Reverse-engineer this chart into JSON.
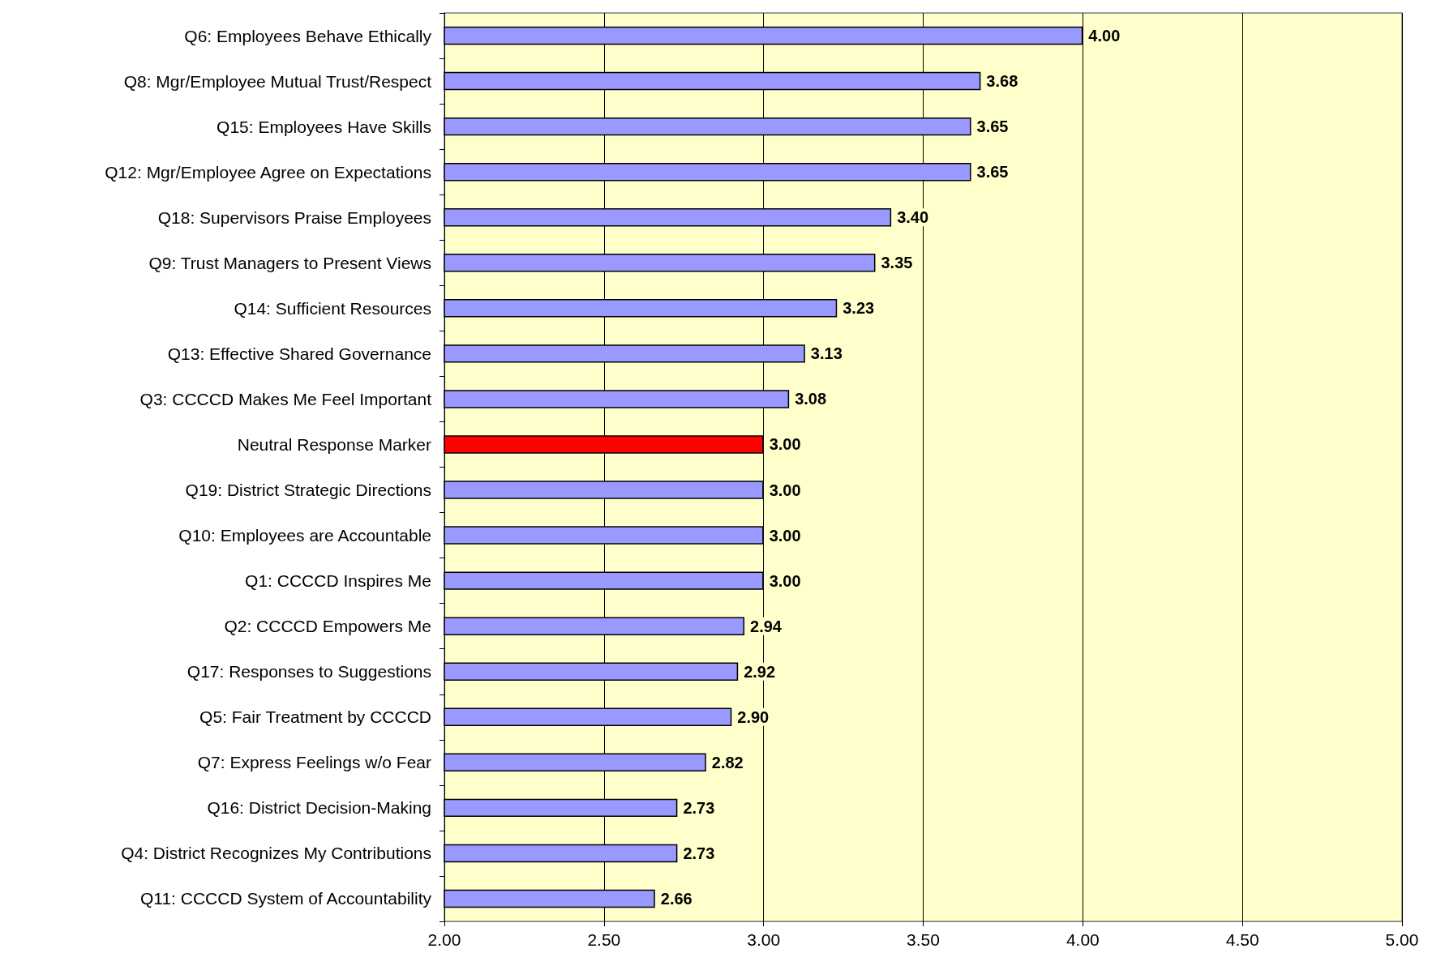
{
  "chart_data": {
    "type": "bar",
    "orientation": "horizontal",
    "categories": [
      "Q6: Employees Behave Ethically",
      "Q8: Mgr/Employee Mutual Trust/Respect",
      "Q15: Employees Have Skills",
      "Q12: Mgr/Employee Agree on Expectations",
      "Q18: Supervisors Praise Employees",
      "Q9: Trust Managers to Present Views",
      "Q14: Sufficient Resources",
      "Q13: Effective Shared Governance",
      "Q3: CCCCD Makes Me Feel Important",
      "Neutral Response Marker",
      "Q19: District Strategic Directions",
      "Q10: Employees are Accountable",
      "Q1: CCCCD Inspires Me",
      "Q2: CCCCD Empowers Me",
      "Q17: Responses to Suggestions",
      "Q5: Fair Treatment by CCCCD",
      "Q7: Express Feelings w/o Fear",
      "Q16: District Decision-Making",
      "Q4: District Recognizes My Contributions",
      "Q11: CCCCD System of Accountability"
    ],
    "values": [
      4.0,
      3.68,
      3.65,
      3.65,
      3.4,
      3.35,
      3.23,
      3.13,
      3.08,
      3.0,
      3.0,
      3.0,
      3.0,
      2.94,
      2.92,
      2.9,
      2.82,
      2.73,
      2.73,
      2.66
    ],
    "value_labels": [
      "4.00",
      "3.68",
      "3.65",
      "3.65",
      "3.40",
      "3.35",
      "3.23",
      "3.13",
      "3.08",
      "3.00",
      "3.00",
      "3.00",
      "3.00",
      "2.94",
      "2.92",
      "2.90",
      "2.82",
      "2.73",
      "2.73",
      "2.66"
    ],
    "colors": [
      "#9999ff",
      "#9999ff",
      "#9999ff",
      "#9999ff",
      "#9999ff",
      "#9999ff",
      "#9999ff",
      "#9999ff",
      "#9999ff",
      "#ff0000",
      "#9999ff",
      "#9999ff",
      "#9999ff",
      "#9999ff",
      "#9999ff",
      "#9999ff",
      "#9999ff",
      "#9999ff",
      "#9999ff",
      "#9999ff"
    ],
    "xlim": [
      2,
      5
    ],
    "xticks": [
      {
        "value": 2,
        "label": "2.00"
      },
      {
        "value": 2.5,
        "label": "2.50"
      },
      {
        "value": 3,
        "label": "3.00"
      },
      {
        "value": 3.5,
        "label": "3.50"
      },
      {
        "value": 4,
        "label": "4.00"
      },
      {
        "value": 4.5,
        "label": "4.50"
      },
      {
        "value": 5,
        "label": "5.00"
      }
    ],
    "grid": "x"
  }
}
